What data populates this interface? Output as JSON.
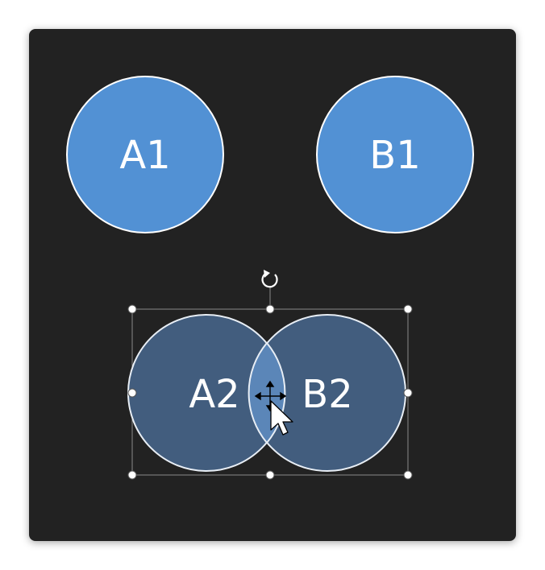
{
  "slide": {
    "shapes": [
      {
        "id": "a1",
        "label": "A1",
        "selected": false
      },
      {
        "id": "b1",
        "label": "B1",
        "selected": false
      },
      {
        "id": "a2",
        "label": "A2",
        "selected": true
      },
      {
        "id": "b2",
        "label": "B2",
        "selected": true
      }
    ]
  },
  "colors": {
    "canvas": "#222222",
    "circle_fill": "#5291D4",
    "selected_fill": "#425D7E",
    "overlap_fill": "#5B86B8",
    "outline": "#FFFFFF",
    "handle": "#FFFFFF",
    "selection_frame": "#8A8A8A"
  },
  "icons": {
    "rotate": "rotate-handle-icon",
    "move": "move-cursor-icon",
    "pointer": "arrow-pointer-icon"
  }
}
